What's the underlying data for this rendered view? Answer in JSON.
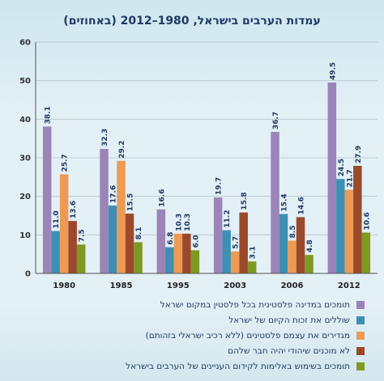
{
  "chart_data": {
    "type": "bar",
    "title": "עמדות הערבים בישראל, 1980–2012 (באחוזים)",
    "categories": [
      "1980",
      "1985",
      "1995",
      "2003",
      "2006",
      "2012"
    ],
    "ylim": [
      0,
      60
    ],
    "yticks": [
      0,
      10,
      20,
      30,
      40,
      50,
      60
    ],
    "grid": true,
    "legend_position": "bottom",
    "series": [
      {
        "name": "תומכים במדינה פלסטינית בכל פלסטין במקום ישראל",
        "color": "#9b84b8",
        "values": [
          38.1,
          32.3,
          16.6,
          19.7,
          36.7,
          49.5
        ]
      },
      {
        "name": "שוללים את זכות הקיום של ישראל",
        "color": "#3f8fb3",
        "values": [
          11.0,
          17.6,
          6.8,
          11.2,
          15.4,
          24.5
        ]
      },
      {
        "name": "מגדירים את עצמם פלסטינים (ללא רכיב ישראלי בזהותם)",
        "color": "#ed9a55",
        "values": [
          25.7,
          29.2,
          10.3,
          5.7,
          8.5,
          21.7
        ]
      },
      {
        "name": "לא מוכנים שיהודי יהיה חבר שלהם",
        "color": "#9a4a2a",
        "values": [
          13.6,
          15.5,
          10.3,
          15.8,
          14.6,
          27.9
        ]
      },
      {
        "name": "תומכים בשימוש באלימות לקידום העניינים של הערבים בישראל",
        "color": "#7e9a23",
        "values": [
          7.5,
          8.1,
          6.0,
          3.1,
          4.8,
          10.6
        ]
      }
    ]
  }
}
